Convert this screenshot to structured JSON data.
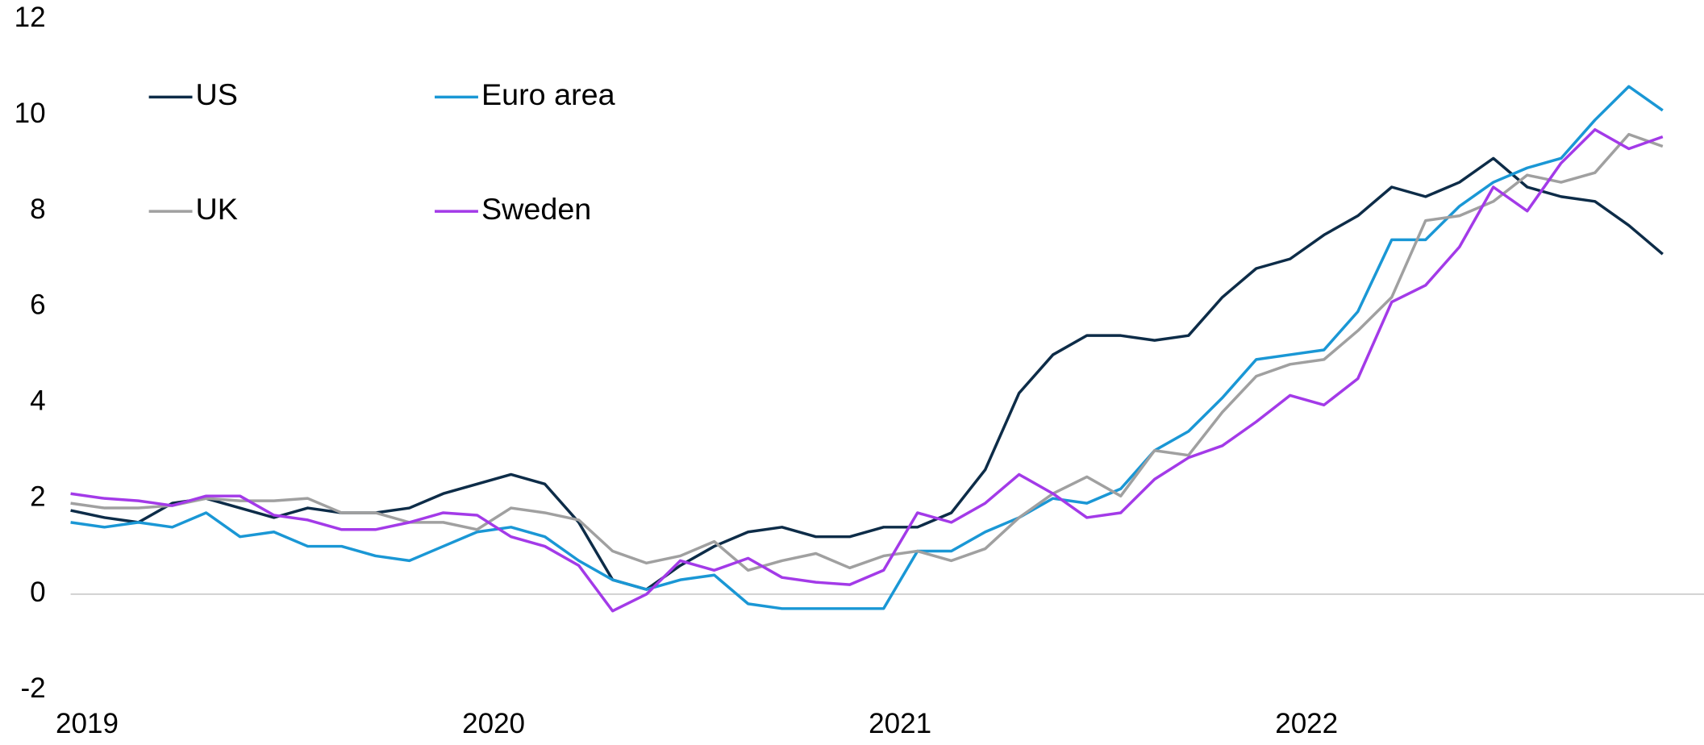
{
  "chart_data": {
    "type": "line",
    "categories": [
      null,
      "2019",
      null,
      null,
      null,
      null,
      null,
      null,
      null,
      null,
      null,
      null,
      null,
      "2020",
      null,
      null,
      null,
      null,
      null,
      null,
      null,
      null,
      null,
      null,
      null,
      "2021",
      null,
      null,
      null,
      null,
      null,
      null,
      null,
      null,
      null,
      null,
      null,
      "2022",
      null,
      null,
      null,
      null,
      null,
      null,
      null,
      null,
      null,
      null
    ],
    "series": [
      {
        "name": "US",
        "color": "#0d2c48",
        "values": [
          1.75,
          1.6,
          1.5,
          1.9,
          2.0,
          1.8,
          1.6,
          1.8,
          1.7,
          1.7,
          1.8,
          2.1,
          2.3,
          2.5,
          2.3,
          1.5,
          0.3,
          0.1,
          0.6,
          1.0,
          1.3,
          1.4,
          1.2,
          1.2,
          1.4,
          1.4,
          1.7,
          2.6,
          4.2,
          5.0,
          5.4,
          5.4,
          5.3,
          5.4,
          6.2,
          6.8,
          7.0,
          7.5,
          7.9,
          8.5,
          8.3,
          8.6,
          9.1,
          8.5,
          8.3,
          8.2,
          7.7,
          7.1
        ]
      },
      {
        "name": "Euro area",
        "color": "#1a97d5",
        "values": [
          1.5,
          1.4,
          1.5,
          1.4,
          1.7,
          1.2,
          1.3,
          1.0,
          1.0,
          0.8,
          0.7,
          1.0,
          1.3,
          1.4,
          1.2,
          0.7,
          0.3,
          0.1,
          0.3,
          0.4,
          -0.2,
          -0.3,
          -0.3,
          -0.3,
          -0.3,
          0.9,
          0.9,
          1.3,
          1.6,
          2.0,
          1.9,
          2.2,
          3.0,
          3.4,
          4.1,
          4.9,
          5.0,
          5.1,
          5.9,
          7.4,
          7.4,
          8.1,
          8.6,
          8.9,
          9.1,
          9.9,
          10.6,
          10.1
        ]
      },
      {
        "name": "UK",
        "color": "#a0a0a0",
        "values": [
          1.9,
          1.8,
          1.8,
          1.85,
          2.0,
          1.95,
          1.95,
          2.0,
          1.7,
          1.7,
          1.5,
          1.5,
          1.35,
          1.8,
          1.7,
          1.55,
          0.9,
          0.65,
          0.8,
          1.1,
          0.5,
          0.7,
          0.85,
          0.55,
          0.8,
          0.9,
          0.7,
          0.95,
          1.6,
          2.1,
          2.45,
          2.05,
          3.0,
          2.9,
          3.8,
          4.55,
          4.8,
          4.9,
          5.5,
          6.2,
          7.8,
          7.9,
          8.2,
          8.75,
          8.6,
          8.8,
          9.6,
          9.35
        ]
      },
      {
        "name": "Sweden",
        "color": "#a33ae8",
        "values": [
          2.1,
          2.0,
          1.95,
          1.85,
          2.05,
          2.05,
          1.65,
          1.55,
          1.35,
          1.35,
          1.5,
          1.7,
          1.65,
          1.2,
          1.0,
          0.6,
          -0.35,
          0.0,
          0.7,
          0.5,
          0.75,
          0.35,
          0.25,
          0.2,
          0.5,
          1.7,
          1.5,
          1.9,
          2.5,
          2.1,
          1.6,
          1.7,
          2.4,
          2.85,
          3.1,
          3.6,
          4.15,
          3.95,
          4.5,
          6.1,
          6.45,
          7.25,
          8.5,
          8.0,
          9.0,
          9.7,
          9.3,
          9.55
        ]
      }
    ],
    "ylim": [
      -2,
      12
    ],
    "yticks": [
      -2,
      0,
      2,
      4,
      6,
      8,
      10,
      12
    ],
    "grid": false
  }
}
